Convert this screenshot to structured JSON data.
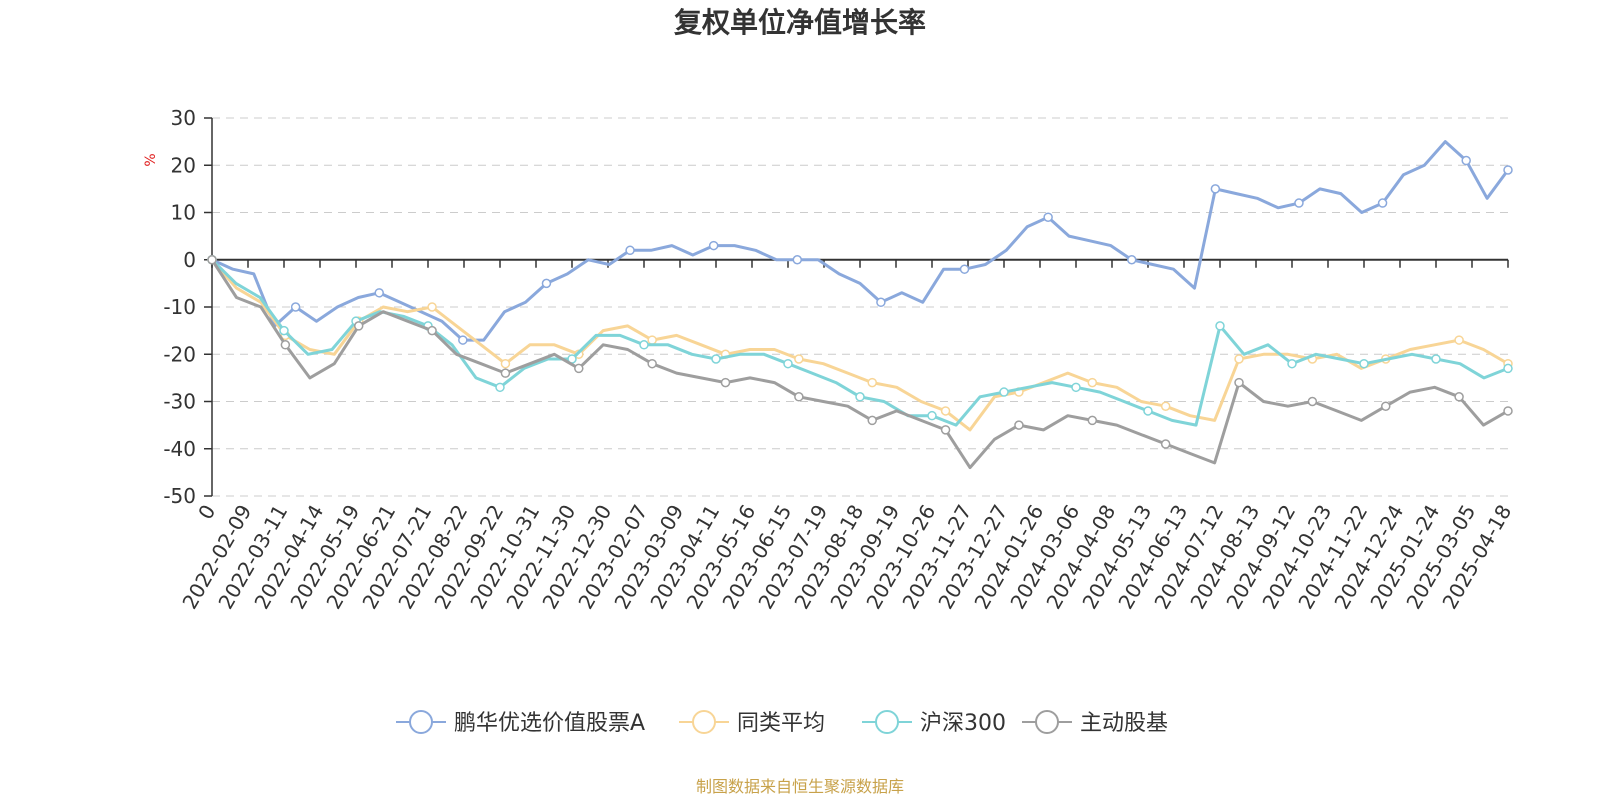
{
  "chart_data": {
    "type": "line",
    "title": "复权单位净值增长率",
    "ylabel": "%",
    "ylim": [
      -50,
      30
    ],
    "yticks": [
      30,
      20,
      10,
      0,
      -10,
      -20,
      -30,
      -40,
      -50
    ],
    "grid": true,
    "legend_position": "bottom",
    "source_note": "制图数据来自恒生聚源数据库",
    "x_tick_labels": [
      "0",
      "2022-02-09",
      "2022-03-11",
      "2022-04-14",
      "2022-05-19",
      "2022-06-21",
      "2022-07-21",
      "2022-08-22",
      "2022-09-22",
      "2022-10-31",
      "2022-11-30",
      "2022-12-30",
      "2023-02-07",
      "2023-03-09",
      "2023-04-11",
      "2023-05-16",
      "2023-06-15",
      "2023-07-19",
      "2023-08-18",
      "2023-09-19",
      "2023-10-26",
      "2023-11-27",
      "2023-12-27",
      "2024-01-26",
      "2024-03-06",
      "2024-04-08",
      "2024-05-13",
      "2024-06-13",
      "2024-07-12",
      "2024-08-13",
      "2024-09-12",
      "2024-10-23",
      "2024-11-22",
      "2024-12-24",
      "2025-01-24",
      "2025-03-05",
      "2025-04-18"
    ],
    "series": [
      {
        "name": "鹏华优选价值股票A",
        "color": "#8aa8dc",
        "values": [
          0,
          -2,
          -3,
          -14,
          -10,
          -13,
          -10,
          -8,
          -7,
          -9,
          -11,
          -13,
          -17,
          -17,
          -11,
          -9,
          -5,
          -3,
          0,
          -1,
          2,
          2,
          3,
          1,
          3,
          3,
          2,
          0,
          0,
          0,
          -3,
          -5,
          -9,
          -7,
          -9,
          -2,
          -2,
          -1,
          2,
          7,
          9,
          5,
          4,
          3,
          0,
          -1,
          -2,
          -6,
          15,
          14,
          13,
          11,
          12,
          15,
          14,
          10,
          12,
          18,
          20,
          25,
          21,
          13,
          19
        ]
      },
      {
        "name": "同类平均",
        "color": "#f8d596",
        "values": [
          0,
          -6,
          -9,
          -16,
          -19,
          -20,
          -13,
          -10,
          -11,
          -10,
          -14,
          -18,
          -22,
          -18,
          -18,
          -20,
          -15,
          -14,
          -17,
          -16,
          -18,
          -20,
          -19,
          -19,
          -21,
          -22,
          -24,
          -26,
          -27,
          -30,
          -32,
          -36,
          -29,
          -28,
          -26,
          -24,
          -26,
          -27,
          -30,
          -31,
          -33,
          -34,
          -21,
          -20,
          -20,
          -21,
          -20,
          -23,
          -21,
          -19,
          -18,
          -17,
          -19,
          -22
        ]
      },
      {
        "name": "沪深300",
        "color": "#7fd4d8",
        "values": [
          0,
          -5,
          -8,
          -15,
          -20,
          -19,
          -13,
          -11,
          -12,
          -14,
          -18,
          -25,
          -27,
          -23,
          -21,
          -21,
          -16,
          -16,
          -18,
          -18,
          -20,
          -21,
          -20,
          -20,
          -22,
          -24,
          -26,
          -29,
          -30,
          -33,
          -33,
          -35,
          -29,
          -28,
          -27,
          -26,
          -27,
          -28,
          -30,
          -32,
          -34,
          -35,
          -14,
          -20,
          -18,
          -22,
          -20,
          -21,
          -22,
          -21,
          -20,
          -21,
          -22,
          -25,
          -23
        ]
      },
      {
        "name": "主动股基",
        "color": "#9e9e9e",
        "values": [
          0,
          -8,
          -10,
          -18,
          -25,
          -22,
          -14,
          -11,
          -13,
          -15,
          -20,
          -22,
          -24,
          -22,
          -20,
          -23,
          -18,
          -19,
          -22,
          -24,
          -25,
          -26,
          -25,
          -26,
          -29,
          -30,
          -31,
          -34,
          -32,
          -34,
          -36,
          -44,
          -38,
          -35,
          -36,
          -33,
          -34,
          -35,
          -37,
          -39,
          -41,
          -43,
          -26,
          -30,
          -31,
          -30,
          -32,
          -34,
          -31,
          -28,
          -27,
          -29,
          -35,
          -32
        ]
      }
    ]
  }
}
